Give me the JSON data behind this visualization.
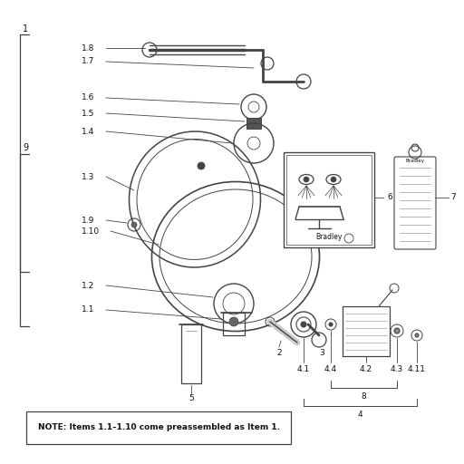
{
  "bg_color": "#ffffff",
  "line_color": "#444444",
  "text_color": "#111111",
  "note_text": "NOTE: Items 1.1–1.10 come preassembled as Item 1.",
  "fig_width": 5.12,
  "fig_height": 5.12,
  "dpi": 100
}
